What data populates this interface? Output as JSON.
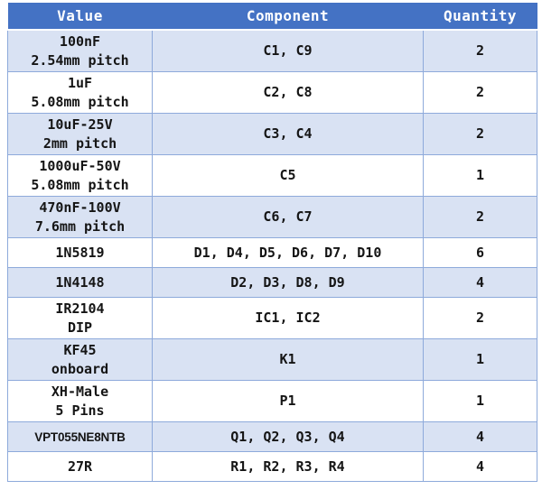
{
  "table": {
    "headers": [
      {
        "label": "Value"
      },
      {
        "label": "Component"
      },
      {
        "label": "Quantity"
      }
    ],
    "rows": [
      {
        "value_lines": [
          "100nF",
          "2.54mm pitch"
        ],
        "component": "C1, C9",
        "quantity": "2",
        "value_style": "normal"
      },
      {
        "value_lines": [
          "1uF",
          "5.08mm pitch"
        ],
        "component": "C2, C8",
        "quantity": "2",
        "value_style": "normal"
      },
      {
        "value_lines": [
          "10uF-25V",
          "2mm pitch"
        ],
        "component": "C3, C4",
        "quantity": "2",
        "value_style": "normal"
      },
      {
        "value_lines": [
          "1000uF-50V",
          "5.08mm pitch"
        ],
        "component": "C5",
        "quantity": "1",
        "value_style": "normal"
      },
      {
        "value_lines": [
          "470nF-100V",
          "7.6mm pitch"
        ],
        "component": "C6, C7",
        "quantity": "2",
        "value_style": "normal"
      },
      {
        "value_lines": [
          "1N5819"
        ],
        "component": "D1, D4, D5, D6, D7, D10",
        "quantity": "6",
        "value_style": "normal"
      },
      {
        "value_lines": [
          "1N4148"
        ],
        "component": "D2, D3, D8, D9",
        "quantity": "4",
        "value_style": "normal"
      },
      {
        "value_lines": [
          "IR2104",
          "DIP"
        ],
        "component": "IC1, IC2",
        "quantity": "2",
        "value_style": "normal"
      },
      {
        "value_lines": [
          "KF45",
          "onboard"
        ],
        "component": "K1",
        "quantity": "1",
        "value_style": "normal"
      },
      {
        "value_lines": [
          "XH-Male",
          "5 Pins"
        ],
        "component": "P1",
        "quantity": "1",
        "value_style": "normal"
      },
      {
        "value_lines": [
          "VPT055NE8NTB"
        ],
        "component": "Q1, Q2, Q3, Q4",
        "quantity": "4",
        "value_style": "condensed"
      },
      {
        "value_lines": [
          "27R"
        ],
        "component": "R1, R2, R3, R4",
        "quantity": "4",
        "value_style": "normal"
      }
    ],
    "colors": {
      "header_bg": "#4472C4",
      "header_text": "#FFFFFF",
      "band_row_bg": "#D9E2F3",
      "plain_row_bg": "#FFFFFF",
      "border": "#8EAADB",
      "body_text": "#151515"
    }
  }
}
